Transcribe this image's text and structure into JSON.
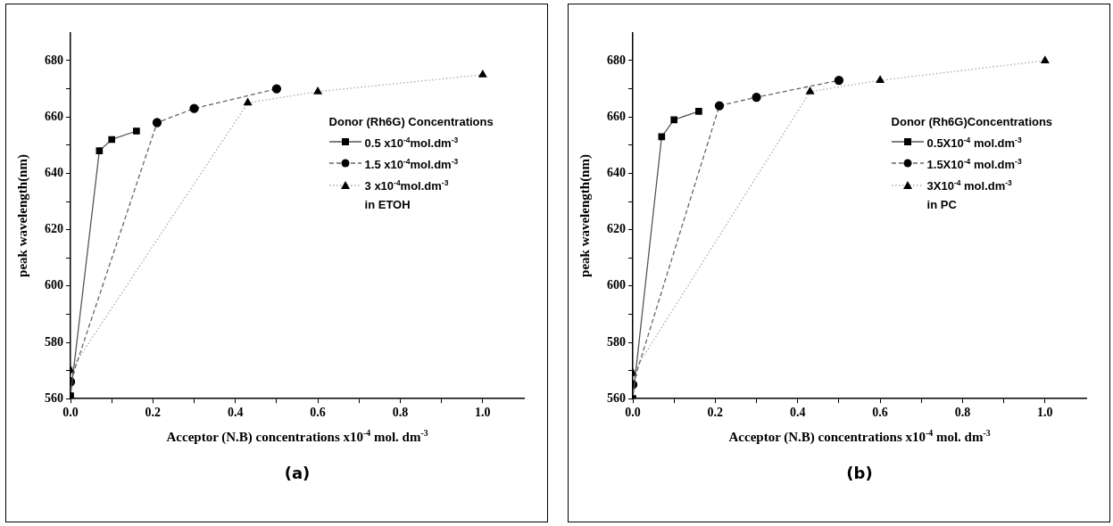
{
  "chart_data": [
    {
      "type": "line",
      "xlabel": "Acceptor (N.B) concentrations x10$^{-4}$ mol. dm$^{-3}$",
      "ylabel": "peak wavelength(nm)",
      "legend_title": "Donor (Rh6G) Concentrations",
      "legend": "right",
      "grid": false,
      "xlim": [
        0,
        1.1
      ],
      "xticks": [
        {
          "value": 0,
          "label": "0.0"
        },
        {
          "value": 0.1,
          "label": null
        },
        {
          "value": 0.2,
          "label": "0.2"
        },
        {
          "value": 0.3,
          "label": null
        },
        {
          "value": 0.4,
          "label": "0.4"
        },
        {
          "value": 0.5,
          "label": null
        },
        {
          "value": 0.6,
          "label": "0.6"
        },
        {
          "value": 0.7,
          "label": null
        },
        {
          "value": 0.8,
          "label": "0.8"
        },
        {
          "value": 0.9,
          "label": null
        },
        {
          "value": 1,
          "label": "1.0"
        }
      ],
      "ylim": [
        560,
        690
      ],
      "yticks": [
        560,
        {
          "value": 570,
          "label": null
        },
        580,
        {
          "value": 590,
          "label": null
        },
        600,
        {
          "value": 610,
          "label": null
        },
        620,
        {
          "value": 630,
          "label": null
        },
        640,
        {
          "value": 650,
          "label": null
        },
        660,
        {
          "value": 670,
          "label": null
        },
        680
      ],
      "series": [
        {
          "name": "0.5 x10$^{-4}$mol.dm$^{-3}$",
          "color": "#000000",
          "marker": "square",
          "line_style": "solid",
          "x": [
            0,
            0.07,
            0.1,
            0.16
          ],
          "values": [
            561,
            648,
            652,
            655
          ]
        },
        {
          "name": "1.5 x10$^{-4}$mol.dm$^{-3}$",
          "color": "#000000",
          "marker": "circle",
          "line_style": "dashed",
          "x": [
            0,
            0.21,
            0.3,
            0.5
          ],
          "values": [
            566,
            658,
            663,
            670
          ]
        },
        {
          "name": "3 x10$^{-4}$mol.dm$^{-3}$",
          "color": "#000000",
          "marker": "triangle",
          "line_style": "dotted",
          "x": [
            0,
            0.43,
            0.6,
            1
          ],
          "values": [
            570,
            665,
            669,
            675
          ]
        }
      ],
      "annotations": [
        "in ETOH",
        "(a)"
      ]
    },
    {
      "type": "line",
      "xlabel": "Acceptor (N.B) concentrations x10$^{-4}$ mol. dm$^{-3}$",
      "ylabel": "peak wavelength(nm)",
      "legend_title": "Donor (Rh6G)Concentrations",
      "legend": "right",
      "grid": false,
      "xlim": [
        0,
        1.1
      ],
      "xticks": [
        {
          "value": 0,
          "label": "0.0"
        },
        {
          "value": 0.1,
          "label": null
        },
        {
          "value": 0.2,
          "label": "0.2"
        },
        {
          "value": 0.3,
          "label": null
        },
        {
          "value": 0.4,
          "label": "0.4"
        },
        {
          "value": 0.5,
          "label": null
        },
        {
          "value": 0.6,
          "label": "0.6"
        },
        {
          "value": 0.7,
          "label": null
        },
        {
          "value": 0.8,
          "label": "0.8"
        },
        {
          "value": 0.9,
          "label": null
        },
        {
          "value": 1,
          "label": "1.0"
        }
      ],
      "ylim": [
        560,
        690
      ],
      "yticks": [
        560,
        {
          "value": 570,
          "label": null
        },
        580,
        {
          "value": 590,
          "label": null
        },
        600,
        {
          "value": 610,
          "label": null
        },
        620,
        {
          "value": 630,
          "label": null
        },
        640,
        {
          "value": 650,
          "label": null
        },
        660,
        {
          "value": 670,
          "label": null
        },
        680
      ],
      "series": [
        {
          "name": "0.5X10$^{-4}$ mol.dm$^{-3}$",
          "color": "#000000",
          "marker": "square",
          "line_style": "solid",
          "x": [
            0,
            0.07,
            0.1,
            0.16
          ],
          "values": [
            560,
            653,
            659,
            662
          ]
        },
        {
          "name": "1.5X10$^{-4}$ mol.dm$^{-3}$",
          "color": "#000000",
          "marker": "circle",
          "line_style": "dashed",
          "x": [
            0,
            0.21,
            0.3,
            0.5
          ],
          "values": [
            565,
            664,
            667,
            673
          ]
        },
        {
          "name": "3X10$^{-4}$ mol.dm$^{-3}$",
          "color": "#000000",
          "marker": "triangle",
          "line_style": "dotted",
          "x": [
            0,
            0.43,
            0.6,
            1
          ],
          "values": [
            569,
            669,
            673,
            680
          ]
        }
      ],
      "annotations": [
        "in PC",
        "(b)"
      ]
    }
  ]
}
